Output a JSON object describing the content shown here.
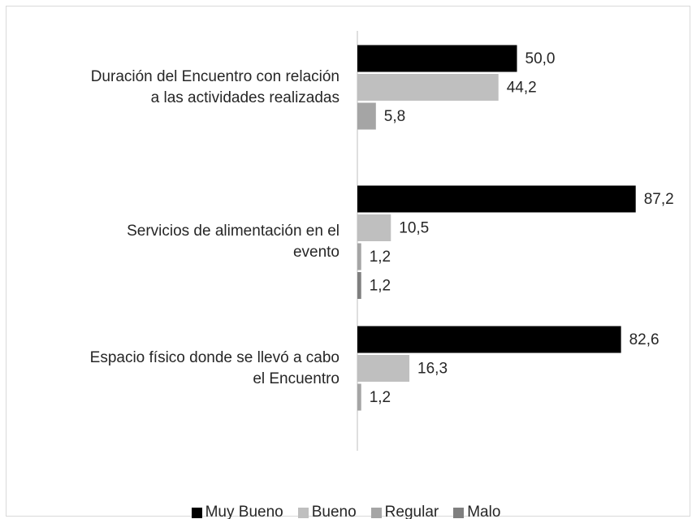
{
  "chart_data": {
    "type": "bar",
    "orientation": "horizontal",
    "categories": [
      "Duración del Encuentro con relación\na las actividades realizadas",
      "Servicios de alimentación en el\nevento",
      "Espacio físico donde se llevó a cabo\nel Encuentro"
    ],
    "series": [
      {
        "name": "Muy Bueno",
        "color": "#000000",
        "values": [
          50.0,
          87.2,
          82.6
        ],
        "value_labels": [
          "50,0",
          "87,2",
          "82,6"
        ]
      },
      {
        "name": "Bueno",
        "color": "#bfbfbf",
        "values": [
          44.2,
          10.5,
          16.3
        ],
        "value_labels": [
          "44,2",
          "10,5",
          "16,3"
        ]
      },
      {
        "name": "Regular",
        "color": "#a5a5a5",
        "values": [
          5.8,
          1.2,
          1.2
        ],
        "value_labels": [
          "5,8",
          "1,2",
          "1,2"
        ]
      },
      {
        "name": "Malo",
        "color": "#7f7f7f",
        "values": [
          null,
          1.2,
          null
        ],
        "value_labels": [
          null,
          "1,2",
          null
        ]
      }
    ],
    "xlim": [
      0,
      100
    ],
    "legend": "bottom"
  }
}
